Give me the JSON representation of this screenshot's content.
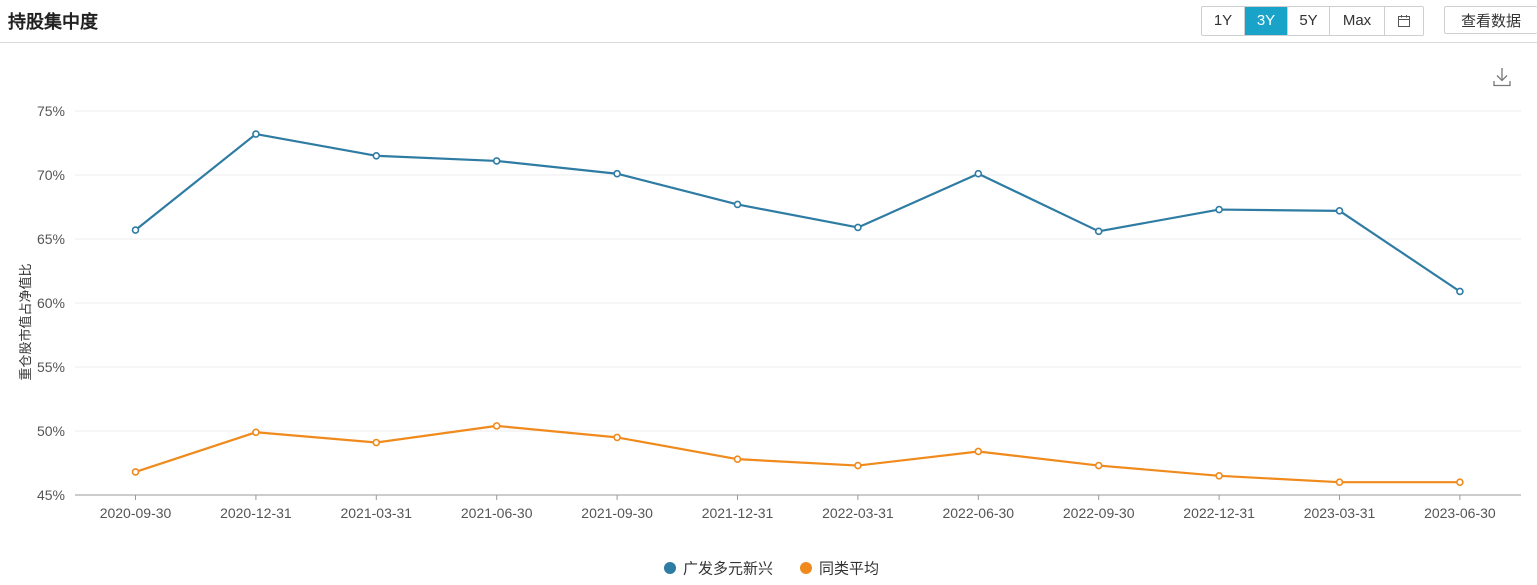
{
  "header": {
    "title": "持股集中度",
    "ranges": [
      "1Y",
      "3Y",
      "5Y",
      "Max"
    ],
    "active_range": "3Y",
    "view_data_label": "查看数据",
    "calendar_icon": "calendar-icon",
    "download_icon": "download-icon"
  },
  "colors": {
    "accent": "#1aa3c9",
    "series1": "#2e7ca3",
    "series2": "#f08a1c"
  },
  "chart_data": {
    "type": "line",
    "title": "",
    "xlabel": "",
    "ylabel": "重仓股市值占净值比",
    "ylim": [
      45,
      77
    ],
    "yticks": [
      45,
      50,
      55,
      60,
      65,
      70,
      75
    ],
    "ytick_suffix": "%",
    "grid": true,
    "legend_position": "bottom-center",
    "x": [
      "2020-09-30",
      "2020-12-31",
      "2021-03-31",
      "2021-06-30",
      "2021-09-30",
      "2021-12-31",
      "2022-03-31",
      "2022-06-30",
      "2022-09-30",
      "2022-12-31",
      "2023-03-31",
      "2023-06-30"
    ],
    "series": [
      {
        "name": "广发多元新兴",
        "color": "#2e7ca3",
        "values": [
          65.7,
          73.2,
          71.5,
          71.1,
          70.1,
          67.7,
          65.9,
          70.1,
          65.6,
          67.3,
          67.2,
          60.9
        ]
      },
      {
        "name": "同类平均",
        "color": "#f08a1c",
        "values": [
          46.8,
          49.9,
          49.1,
          50.4,
          49.5,
          47.8,
          47.3,
          48.4,
          47.3,
          46.5,
          46.0,
          46.0
        ]
      }
    ]
  }
}
